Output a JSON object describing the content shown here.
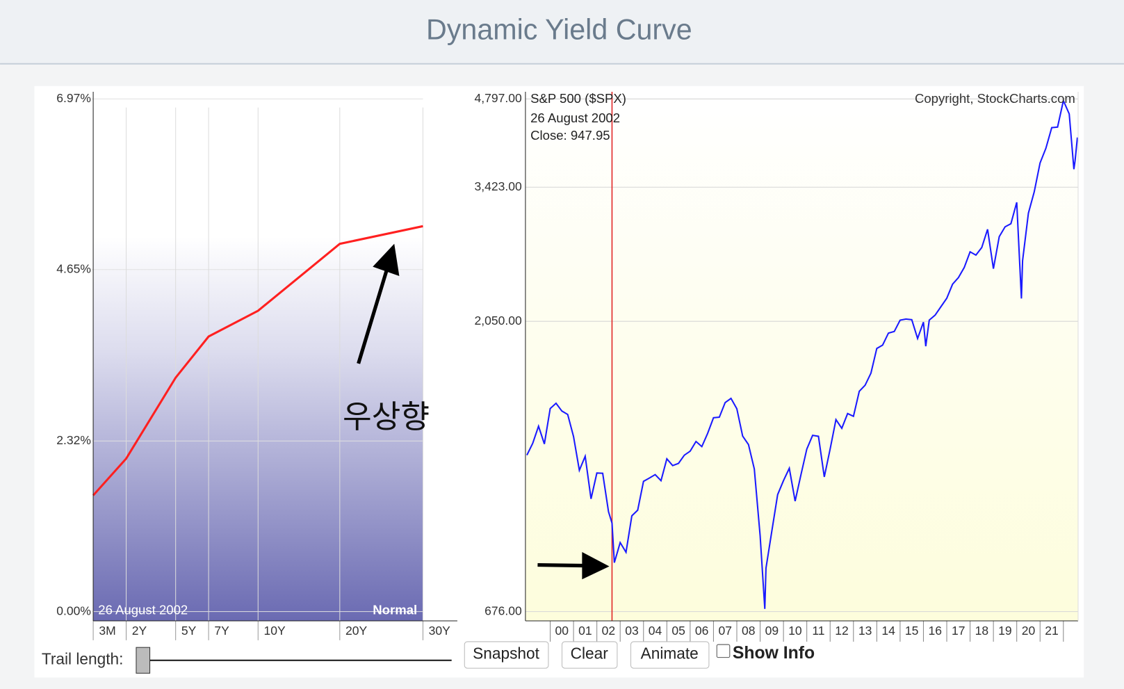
{
  "header": {
    "title": "Dynamic Yield Curve"
  },
  "chart_data": [
    {
      "type": "line",
      "categories": [
        "3M",
        "2Y",
        "5Y",
        "7Y",
        "10Y",
        "20Y",
        "30Y"
      ],
      "values": [
        1.58,
        2.08,
        3.18,
        3.74,
        4.09,
        5.0,
        5.24
      ],
      "color": "#ff2020",
      "ylim": [
        0,
        6.97
      ],
      "yticks": [
        {
          "value": 0,
          "label": "0.00%"
        },
        {
          "value": 2.32,
          "label": "2.32%"
        },
        {
          "value": 4.65,
          "label": "4.65%"
        },
        {
          "value": 6.97,
          "label": "6.97%"
        }
      ],
      "grid": true,
      "date_label": "26  August 2002",
      "curve_label": "Normal",
      "annotation": "우상향"
    },
    {
      "type": "line",
      "title": "S&P 500 ($SPX)",
      "copyright": "Copyright, StockCharts.com",
      "date_label": "26  August 2002",
      "close_label": "Close: 947.95",
      "cursor": {
        "x": 2002.65,
        "value": 947.95
      },
      "log_scale": true,
      "color": "#1a1aff",
      "x": [
        1999,
        1999.25,
        1999.5,
        1999.75,
        2000,
        2000.25,
        2000.5,
        2000.75,
        2001,
        2001.25,
        2001.5,
        2001.75,
        2002,
        2002.25,
        2002.5,
        2002.65,
        2002.75,
        2003,
        2003.25,
        2003.5,
        2003.75,
        2004,
        2004.25,
        2004.5,
        2004.75,
        2005,
        2005.25,
        2005.5,
        2005.75,
        2006,
        2006.25,
        2006.5,
        2006.75,
        2007,
        2007.25,
        2007.5,
        2007.75,
        2008,
        2008.25,
        2008.5,
        2008.75,
        2009,
        2009.2,
        2009.25,
        2009.5,
        2009.75,
        2010,
        2010.25,
        2010.5,
        2010.75,
        2011,
        2011.25,
        2011.5,
        2011.75,
        2012,
        2012.25,
        2012.5,
        2012.75,
        2013,
        2013.25,
        2013.5,
        2013.75,
        2014,
        2014.25,
        2014.5,
        2014.75,
        2015,
        2015.25,
        2015.5,
        2015.75,
        2016,
        2016.1,
        2016.25,
        2016.5,
        2016.75,
        2017,
        2017.25,
        2017.5,
        2017.75,
        2018,
        2018.25,
        2018.5,
        2018.75,
        2019,
        2019.25,
        2019.5,
        2019.75,
        2020,
        2020.2,
        2020.25,
        2020.5,
        2020.75,
        2021,
        2021.25,
        2021.5,
        2021.75,
        2022,
        2022.25,
        2022.45,
        2022.5,
        2022.6
      ],
      "values": [
        1229,
        1286,
        1373,
        1283,
        1469,
        1499,
        1455,
        1436,
        1320,
        1160,
        1224,
        1040,
        1148,
        1147,
        990,
        948,
        815,
        880,
        848,
        975,
        996,
        1112,
        1126,
        1141,
        1115,
        1212,
        1181,
        1191,
        1229,
        1248,
        1295,
        1270,
        1336,
        1418,
        1421,
        1503,
        1527,
        1468,
        1322,
        1280,
        1166,
        903,
        683,
        798,
        919,
        1057,
        1115,
        1169,
        1031,
        1141,
        1258,
        1326,
        1321,
        1131,
        1258,
        1408,
        1362,
        1441,
        1426,
        1569,
        1606,
        1682,
        1848,
        1872,
        1960,
        1972,
        2059,
        2068,
        2063,
        1920,
        2044,
        1864,
        2060,
        2099,
        2168,
        2239,
        2363,
        2423,
        2519,
        2674,
        2641,
        2718,
        2914,
        2507,
        2834,
        2942,
        2977,
        3231,
        2237,
        2585,
        3100,
        3363,
        3756,
        3973,
        4298,
        4308,
        4766,
        4530,
        3667,
        3785,
        4140
      ],
      "xlim": [
        1999,
        2022.6
      ],
      "xticks": [
        {
          "value": 2000,
          "label": "00"
        },
        {
          "value": 2001,
          "label": "01"
        },
        {
          "value": 2002,
          "label": "02"
        },
        {
          "value": 2003,
          "label": "03"
        },
        {
          "value": 2004,
          "label": "04"
        },
        {
          "value": 2005,
          "label": "05"
        },
        {
          "value": 2006,
          "label": "06"
        },
        {
          "value": 2007,
          "label": "07"
        },
        {
          "value": 2008,
          "label": "08"
        },
        {
          "value": 2009,
          "label": "09"
        },
        {
          "value": 2010,
          "label": "10"
        },
        {
          "value": 2011,
          "label": "11"
        },
        {
          "value": 2012,
          "label": "12"
        },
        {
          "value": 2013,
          "label": "13"
        },
        {
          "value": 2014,
          "label": "14"
        },
        {
          "value": 2015,
          "label": "15"
        },
        {
          "value": 2016,
          "label": "16"
        },
        {
          "value": 2017,
          "label": "17"
        },
        {
          "value": 2018,
          "label": "18"
        },
        {
          "value": 2019,
          "label": "19"
        },
        {
          "value": 2020,
          "label": "20"
        },
        {
          "value": 2021,
          "label": "21"
        }
      ],
      "ylim": [
        676,
        4797
      ],
      "yticks": [
        {
          "value": 676,
          "label": "676.00"
        },
        {
          "value": 2050,
          "label": "2,050.00"
        },
        {
          "value": 3423,
          "label": "3,423.00"
        },
        {
          "value": 4797,
          "label": "4,797.00"
        }
      ],
      "grid": true
    }
  ],
  "controls": {
    "trail_label": "Trail length:",
    "buttons": [
      "Snapshot",
      "Clear",
      "Animate"
    ],
    "checkbox": "Show Info"
  }
}
